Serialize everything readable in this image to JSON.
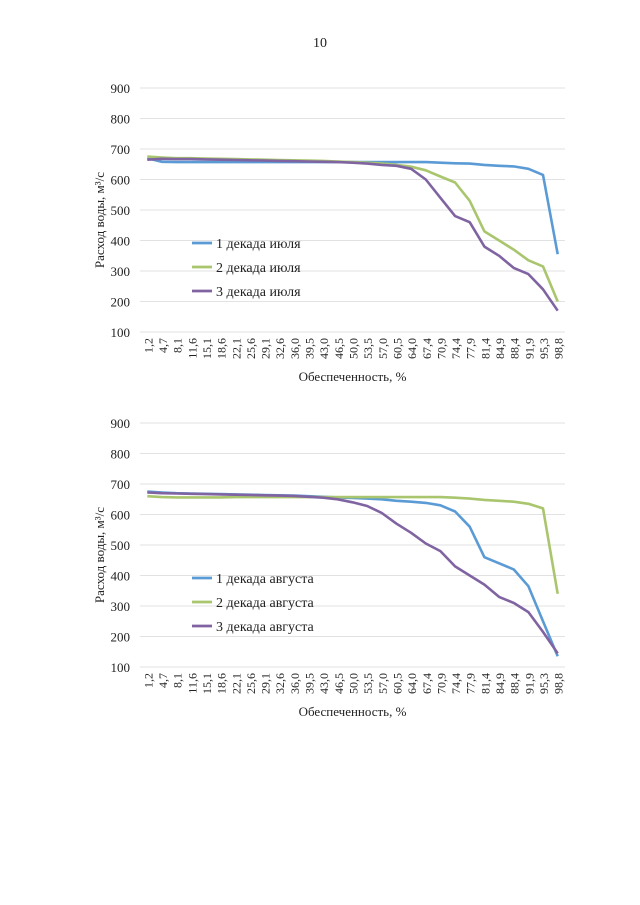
{
  "page": {
    "number": "10"
  },
  "chart_data": [
    {
      "type": "line",
      "ylabel": "Расход воды, м³/с",
      "xlabel": "Обеспеченность, %",
      "ylim": [
        100,
        900
      ],
      "yticks": [
        100,
        200,
        300,
        400,
        500,
        600,
        700,
        800,
        900
      ],
      "x": [
        1.2,
        4.7,
        8.1,
        11.6,
        15.1,
        18.6,
        22.1,
        25.6,
        29.1,
        32.6,
        36.0,
        39.5,
        43.0,
        46.5,
        50.0,
        53.5,
        57.0,
        60.5,
        64.0,
        67.4,
        70.9,
        74.4,
        77.9,
        81.4,
        84.9,
        88.4,
        91.9,
        95.3,
        98.8
      ],
      "xtick_labels": [
        "1,2",
        "4,7",
        "8,1",
        "11,6",
        "15,1",
        "18,6",
        "22,1",
        "25,6",
        "29,1",
        "32,6",
        "36,0",
        "39,5",
        "43,0",
        "46,5",
        "50,0",
        "53,5",
        "57,0",
        "60,5",
        "64,0",
        "67,4",
        "70,9",
        "74,4",
        "77,9",
        "81,4",
        "84,9",
        "88,4",
        "91,9",
        "95,3",
        "98,8"
      ],
      "grid": true,
      "legend_position": "lower-left",
      "series": [
        {
          "name": "1 декада июля",
          "color": "#5b9bd5",
          "values": [
            670,
            658,
            657,
            657,
            657,
            657,
            657,
            657,
            657,
            657,
            657,
            657,
            657,
            657,
            657,
            657,
            657,
            657,
            657,
            657,
            655,
            653,
            652,
            648,
            645,
            643,
            635,
            615,
            355
          ]
        },
        {
          "name": "2 декада июля",
          "color": "#a9c66e",
          "values": [
            675,
            672,
            670,
            670,
            669,
            668,
            667,
            666,
            665,
            664,
            663,
            662,
            661,
            659,
            657,
            655,
            652,
            648,
            642,
            630,
            610,
            590,
            530,
            430,
            400,
            370,
            335,
            315,
            200
          ]
        },
        {
          "name": "3 декада июля",
          "color": "#8064a2",
          "values": [
            665,
            668,
            667,
            667,
            666,
            665,
            664,
            663,
            662,
            661,
            660,
            659,
            658,
            657,
            655,
            652,
            648,
            645,
            635,
            600,
            540,
            480,
            460,
            380,
            350,
            310,
            290,
            240,
            170
          ]
        }
      ]
    },
    {
      "type": "line",
      "ylabel": "Расход воды, м³/с",
      "xlabel": "Обеспеченность, %",
      "ylim": [
        100,
        900
      ],
      "yticks": [
        100,
        200,
        300,
        400,
        500,
        600,
        700,
        800,
        900
      ],
      "x": [
        1.2,
        4.7,
        8.1,
        11.6,
        15.1,
        18.6,
        22.1,
        25.6,
        29.1,
        32.6,
        36.0,
        39.5,
        43.0,
        46.5,
        50.0,
        53.5,
        57.0,
        60.5,
        64.0,
        67.4,
        70.9,
        74.4,
        77.9,
        81.4,
        84.9,
        88.4,
        91.9,
        95.3,
        98.8
      ],
      "xtick_labels": [
        "1,2",
        "4,7",
        "8,1",
        "11,6",
        "15,1",
        "18,6",
        "22,1",
        "25,6",
        "29,1",
        "32,6",
        "36,0",
        "39,5",
        "43,0",
        "46,5",
        "50,0",
        "53,5",
        "57,0",
        "60,5",
        "64,0",
        "67,4",
        "70,9",
        "74,4",
        "77,9",
        "81,4",
        "84,9",
        "88,4",
        "91,9",
        "95,3",
        "98,8"
      ],
      "grid": true,
      "legend_position": "lower-left",
      "series": [
        {
          "name": "1 декада августа",
          "color": "#5b9bd5",
          "values": [
            675,
            672,
            670,
            669,
            668,
            667,
            666,
            665,
            664,
            663,
            662,
            660,
            658,
            656,
            654,
            652,
            650,
            645,
            642,
            638,
            630,
            610,
            560,
            460,
            440,
            420,
            365,
            250,
            135
          ]
        },
        {
          "name": "2 декада августа",
          "color": "#a9c66e",
          "values": [
            660,
            657,
            656,
            656,
            656,
            656,
            657,
            657,
            657,
            657,
            657,
            657,
            657,
            657,
            657,
            657,
            657,
            657,
            657,
            657,
            657,
            655,
            652,
            648,
            645,
            642,
            635,
            620,
            340
          ]
        },
        {
          "name": "3 декада августа",
          "color": "#8064a2",
          "values": [
            672,
            670,
            669,
            668,
            667,
            666,
            665,
            664,
            663,
            662,
            661,
            658,
            655,
            650,
            640,
            628,
            605,
            570,
            540,
            505,
            480,
            430,
            400,
            370,
            330,
            310,
            280,
            215,
            145
          ]
        }
      ]
    }
  ]
}
